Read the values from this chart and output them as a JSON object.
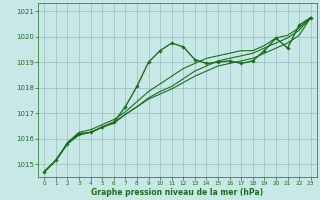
{
  "background_color": "#c8e8e8",
  "plot_bg_color": "#c8e8e8",
  "grid_color": "#99bbbb",
  "line_color": "#1a6e1a",
  "marker_color": "#1a6e1a",
  "xlabel": "Graphe pression niveau de la mer (hPa)",
  "xlim": [
    -0.5,
    23.5
  ],
  "ylim": [
    1014.5,
    1021.3
  ],
  "yticks": [
    1015,
    1016,
    1017,
    1018,
    1019,
    1020,
    1021
  ],
  "xticks": [
    0,
    1,
    2,
    3,
    4,
    5,
    6,
    7,
    8,
    9,
    10,
    11,
    12,
    13,
    14,
    15,
    16,
    17,
    18,
    19,
    20,
    21,
    22,
    23
  ],
  "series": [
    {
      "y": [
        1014.7,
        1015.15,
        1015.8,
        1016.2,
        1016.25,
        1016.45,
        1016.65,
        1017.25,
        1018.05,
        1019.0,
        1019.45,
        1019.75,
        1019.6,
        1019.1,
        1018.95,
        1019.0,
        1019.05,
        1018.95,
        1019.05,
        1019.45,
        1019.95,
        1019.55,
        1020.45,
        1020.75
      ],
      "markers": true,
      "linewidth": 1.0
    },
    {
      "y": [
        1014.7,
        1015.15,
        1015.8,
        1016.15,
        1016.25,
        1016.45,
        1016.6,
        1016.95,
        1017.25,
        1017.55,
        1017.75,
        1017.95,
        1018.2,
        1018.45,
        1018.65,
        1018.85,
        1018.95,
        1019.05,
        1019.15,
        1019.35,
        1019.55,
        1019.75,
        1020.05,
        1020.75
      ],
      "markers": false,
      "linewidth": 0.8
    },
    {
      "y": [
        1014.7,
        1015.15,
        1015.8,
        1016.15,
        1016.25,
        1016.45,
        1016.65,
        1016.95,
        1017.25,
        1017.6,
        1017.85,
        1018.05,
        1018.35,
        1018.65,
        1018.85,
        1019.05,
        1019.15,
        1019.25,
        1019.35,
        1019.55,
        1019.75,
        1019.95,
        1020.25,
        1020.75
      ],
      "markers": false,
      "linewidth": 0.8
    },
    {
      "y": [
        1014.7,
        1015.15,
        1015.85,
        1016.25,
        1016.35,
        1016.55,
        1016.75,
        1017.05,
        1017.45,
        1017.85,
        1018.15,
        1018.45,
        1018.75,
        1018.95,
        1019.15,
        1019.25,
        1019.35,
        1019.45,
        1019.45,
        1019.65,
        1019.95,
        1020.05,
        1020.35,
        1020.75
      ],
      "markers": false,
      "linewidth": 0.8
    }
  ]
}
